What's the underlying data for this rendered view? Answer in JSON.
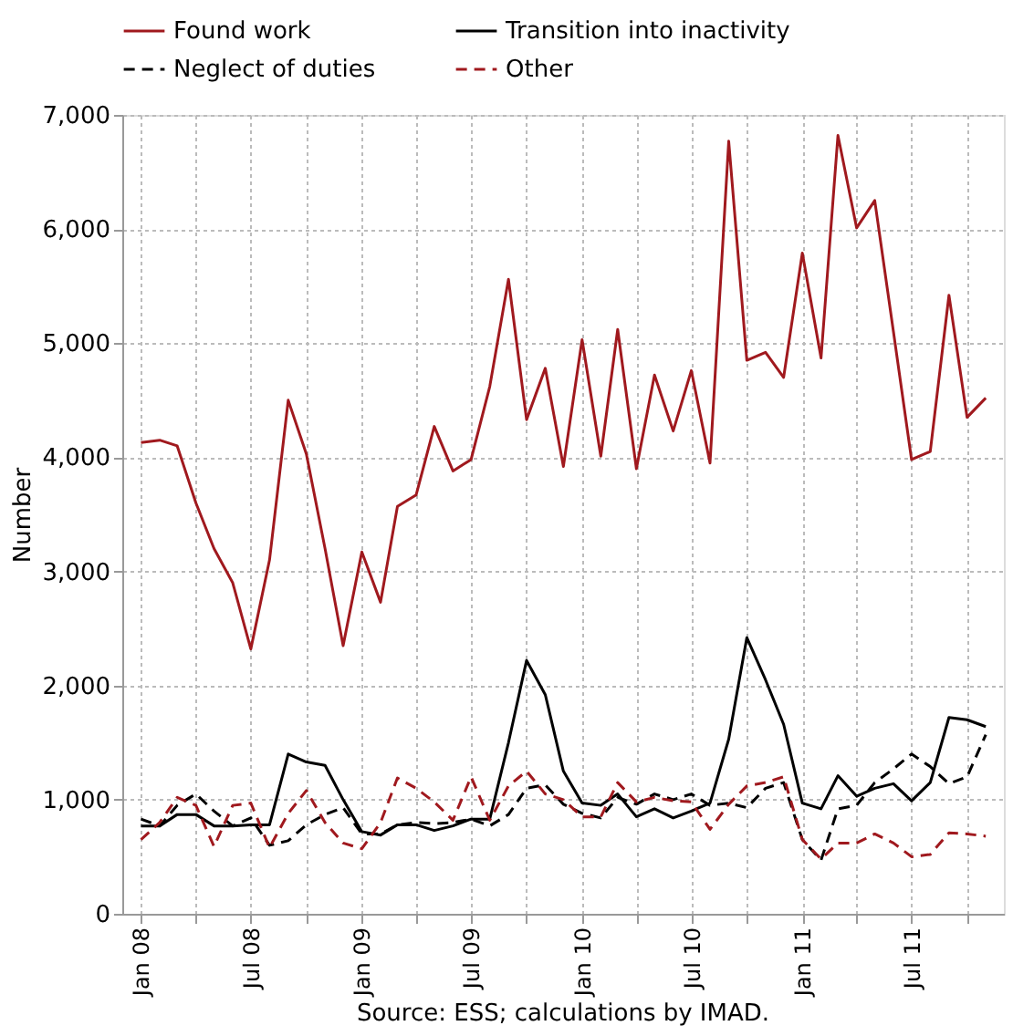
{
  "chart_data": {
    "type": "line",
    "ylabel": "Number",
    "annotations": [
      "Source: ESS; calculations by IMAD."
    ],
    "x": [
      "2008-01",
      "2008-02",
      "2008-03",
      "2008-04",
      "2008-05",
      "2008-06",
      "2008-07",
      "2008-08",
      "2008-09",
      "2008-10",
      "2008-11",
      "2008-12",
      "2009-01",
      "2009-02",
      "2009-03",
      "2009-04",
      "2009-05",
      "2009-06",
      "2009-07",
      "2009-08",
      "2009-09",
      "2009-10",
      "2009-11",
      "2009-12",
      "2010-01",
      "2010-02",
      "2010-03",
      "2010-04",
      "2010-05",
      "2010-06",
      "2010-07",
      "2010-08",
      "2010-09",
      "2010-10",
      "2010-11",
      "2010-12",
      "2011-01",
      "2011-02",
      "2011-03",
      "2011-04",
      "2011-05",
      "2011-06",
      "2011-07",
      "2011-08",
      "2011-09",
      "2011-10",
      "2011-11"
    ],
    "series": [
      {
        "name": "Found work",
        "color": "#a0191e",
        "line_style": "solid",
        "values": [
          4130,
          4150,
          4100,
          3600,
          3200,
          2900,
          2320,
          3100,
          4500,
          4030,
          3200,
          2350,
          3170,
          2730,
          3570,
          3670,
          4270,
          3880,
          3980,
          4620,
          5560,
          4330,
          4780,
          3920,
          5030,
          4010,
          5120,
          3900,
          4720,
          4230,
          4760,
          3950,
          6770,
          4850,
          4920,
          4700,
          5790,
          4870,
          6820,
          6010,
          6250,
          5100,
          3980,
          4050,
          5420,
          4350,
          4520
        ]
      },
      {
        "name": "Transition into inactivity",
        "color": "#000000",
        "line_style": "solid",
        "values": [
          770,
          770,
          870,
          870,
          770,
          770,
          780,
          780,
          1400,
          1330,
          1300,
          1000,
          720,
          690,
          780,
          780,
          730,
          770,
          830,
          830,
          1500,
          2220,
          1920,
          1250,
          970,
          950,
          1050,
          850,
          920,
          840,
          900,
          970,
          1530,
          2420,
          2050,
          1660,
          970,
          920,
          1210,
          1030,
          1100,
          1140,
          990,
          1150,
          1720,
          1700,
          1640
        ]
      },
      {
        "name": "Neglect of duties",
        "color": "#000000",
        "line_style": "dashed",
        "values": [
          830,
          770,
          950,
          1050,
          900,
          770,
          840,
          600,
          640,
          780,
          870,
          930,
          700,
          700,
          780,
          800,
          790,
          800,
          830,
          770,
          870,
          1100,
          1130,
          960,
          880,
          840,
          1020,
          960,
          1050,
          1000,
          1050,
          950,
          970,
          930,
          1100,
          1150,
          650,
          470,
          920,
          950,
          1150,
          1270,
          1400,
          1290,
          1140,
          1200,
          1570
        ]
      },
      {
        "name": "Other",
        "color": "#a0191e",
        "line_style": "dashed",
        "values": [
          650,
          800,
          1020,
          950,
          590,
          950,
          970,
          580,
          880,
          1080,
          800,
          620,
          570,
          800,
          1190,
          1100,
          980,
          820,
          1200,
          820,
          1120,
          1250,
          1050,
          1000,
          850,
          850,
          1150,
          980,
          1020,
          990,
          980,
          740,
          960,
          1120,
          1150,
          1200,
          650,
          480,
          620,
          620,
          700,
          620,
          500,
          520,
          710,
          700,
          680
        ]
      }
    ],
    "xlim": [
      "2007-12",
      "2011-12"
    ],
    "xticks": [
      {
        "value": "2008-01",
        "label": "Jan 08"
      },
      {
        "value": "2008-04",
        "label": null
      },
      {
        "value": "2008-07",
        "label": "Jul 08"
      },
      {
        "value": "2008-10",
        "label": null
      },
      {
        "value": "2009-01",
        "label": "Jan 09"
      },
      {
        "value": "2009-04",
        "label": null
      },
      {
        "value": "2009-07",
        "label": "Jul 09"
      },
      {
        "value": "2009-10",
        "label": null
      },
      {
        "value": "2010-01",
        "label": "Jan 10"
      },
      {
        "value": "2010-04",
        "label": null
      },
      {
        "value": "2010-07",
        "label": "Jul 10"
      },
      {
        "value": "2010-10",
        "label": null
      },
      {
        "value": "2011-01",
        "label": "Jan 11"
      },
      {
        "value": "2011-04",
        "label": null
      },
      {
        "value": "2011-07",
        "label": "Jul 11"
      },
      {
        "value": "2011-10",
        "label": null
      }
    ],
    "ylim": [
      0,
      7000
    ],
    "yticks": [
      0,
      {
        "value": 1000,
        "label": "1,000"
      },
      {
        "value": 2000,
        "label": "2,000"
      },
      {
        "value": 3000,
        "label": "3,000"
      },
      {
        "value": 4000,
        "label": "4,000"
      },
      {
        "value": 5000,
        "label": "5,000"
      },
      {
        "value": 6000,
        "label": "6,000"
      },
      {
        "value": 7000,
        "label": "7,000"
      }
    ],
    "grid": true,
    "legend": "top"
  }
}
